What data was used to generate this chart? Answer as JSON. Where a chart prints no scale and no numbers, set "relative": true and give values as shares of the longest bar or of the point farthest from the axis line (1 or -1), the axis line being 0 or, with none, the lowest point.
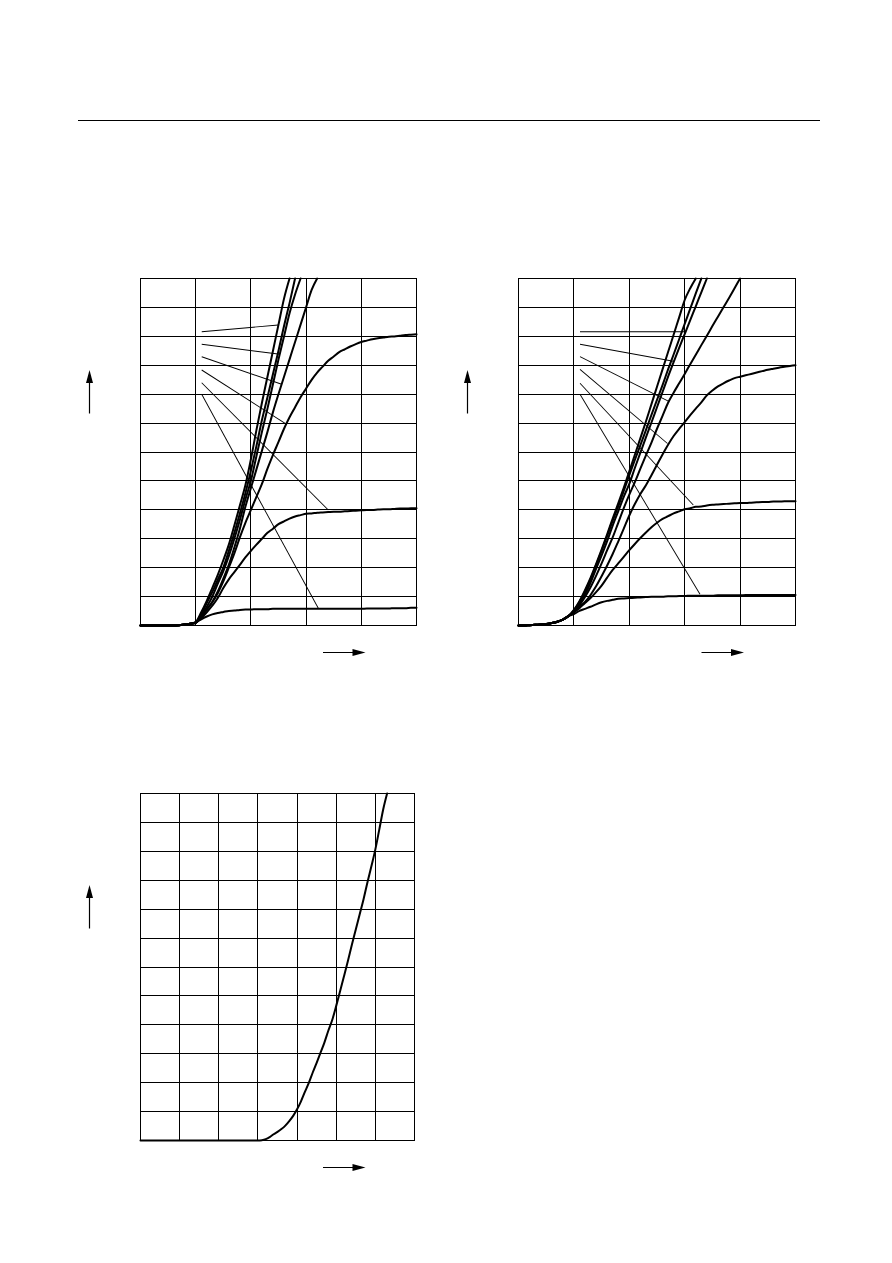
{
  "chart_data": [
    {
      "type": "line",
      "relative": true,
      "grid": true,
      "categories": [
        null,
        null,
        null,
        null,
        null,
        null,
        null,
        null,
        null,
        null,
        null,
        null,
        null,
        null,
        null,
        null,
        null,
        null,
        null,
        null,
        null,
        null,
        null,
        null,
        null,
        null,
        null,
        null,
        null,
        null,
        null,
        null,
        null,
        null,
        null,
        null,
        null,
        null,
        null,
        null,
        null,
        null,
        null,
        null,
        null,
        null,
        null,
        null,
        null,
        null,
        null
      ],
      "series": [
        {
          "color": "#000000",
          "values": [
            0,
            0,
            0,
            0,
            0,
            0,
            0,
            0.001,
            0.003,
            0.005,
            0.009,
            0.018,
            0.026,
            0.032,
            0.036,
            0.039,
            0.042,
            0.043,
            0.045,
            0.046,
            0.046,
            0.047,
            0.047,
            0.047,
            0.048,
            0.048,
            0.048,
            0.048,
            0.048,
            0.048,
            0.048,
            0.048,
            0.048,
            0.048,
            0.048,
            0.048,
            0.048,
            0.048,
            0.048,
            0.048,
            0.048,
            0.049,
            0.049,
            0.049,
            0.049,
            0.049,
            0.05,
            0.05,
            0.05,
            0.051,
            0.051
          ]
        },
        {
          "color": "#000000",
          "values": [
            0,
            0,
            0,
            0,
            0,
            0,
            0,
            0.001,
            0.003,
            0.005,
            0.008,
            0.021,
            0.038,
            0.057,
            0.079,
            0.108,
            0.133,
            0.154,
            0.175,
            0.196,
            0.215,
            0.233,
            0.25,
            0.267,
            0.279,
            0.292,
            0.3,
            0.308,
            0.314,
            0.318,
            0.322,
            0.323,
            0.325,
            0.326,
            0.327,
            0.328,
            0.328,
            0.329,
            0.33,
            0.331,
            0.332,
            0.333,
            0.333,
            0.334,
            0.335,
            0.335,
            0.336,
            0.337,
            0.337,
            0.338,
            0.338
          ]
        },
        {
          "color": "#000000",
          "values": [
            0,
            0,
            0,
            0,
            0,
            0,
            0,
            0.001,
            0.003,
            0.005,
            0.008,
            0.025,
            0.046,
            0.067,
            0.093,
            0.127,
            0.167,
            0.208,
            0.254,
            0.296,
            0.333,
            0.371,
            0.408,
            0.452,
            0.492,
            0.529,
            0.567,
            0.6,
            0.629,
            0.658,
            0.683,
            0.708,
            0.729,
            0.746,
            0.763,
            0.775,
            0.788,
            0.796,
            0.804,
            0.811,
            0.817,
            0.821,
            0.825,
            0.828,
            0.83,
            0.832,
            0.833,
            0.835,
            0.837,
            0.838,
            0.839
          ]
        },
        {
          "color": "#000000",
          "values": [
            0,
            0,
            0,
            0,
            0,
            0,
            0,
            0.001,
            0.003,
            0.005,
            0.01,
            0.038,
            0.071,
            0.108,
            0.146,
            0.188,
            0.233,
            0.288,
            0.346,
            0.404,
            0.479,
            0.563,
            0.642,
            0.717,
            0.792,
            0.867,
            0.942,
            1,
            null,
            null,
            null,
            null,
            null,
            null,
            null,
            null,
            null,
            null,
            null,
            null,
            null,
            null,
            null,
            null,
            null,
            null,
            null,
            null,
            null,
            null,
            null
          ]
        },
        {
          "color": "#000000",
          "values": [
            0,
            0,
            0,
            0,
            0,
            0,
            0,
            0.001,
            0.003,
            0.005,
            0.009,
            0.033,
            0.065,
            0.096,
            0.132,
            0.167,
            0.215,
            0.267,
            0.323,
            0.381,
            0.446,
            0.517,
            0.592,
            0.658,
            0.725,
            0.792,
            0.863,
            0.929,
            1,
            null,
            null,
            null,
            null,
            null,
            null,
            null,
            null,
            null,
            null,
            null,
            null,
            null,
            null,
            null,
            null,
            null,
            null,
            null,
            null,
            null,
            null
          ]
        },
        {
          "color": "#000000",
          "values": [
            0,
            0,
            0,
            0,
            0,
            0,
            0,
            0.001,
            0.003,
            0.005,
            0.008,
            0.029,
            0.054,
            0.083,
            0.121,
            0.157,
            0.2,
            0.25,
            0.304,
            0.363,
            0.417,
            0.488,
            0.558,
            0.625,
            0.696,
            0.767,
            0.833,
            0.9,
            0.954,
            1,
            null,
            null,
            null,
            null,
            null,
            null,
            null,
            null,
            null,
            null,
            null,
            null,
            null,
            null,
            null,
            null,
            null,
            null,
            null,
            null,
            null
          ]
        },
        {
          "color": "#000000",
          "values": [
            0,
            0,
            0,
            0,
            0,
            0,
            0,
            0.001,
            0.003,
            0.005,
            0.008,
            0.025,
            0.046,
            0.068,
            0.098,
            0.135,
            0.175,
            0.225,
            0.279,
            0.342,
            0.396,
            0.45,
            0.504,
            0.558,
            0.615,
            0.667,
            0.717,
            0.767,
            0.817,
            0.867,
            0.917,
            0.967,
            1,
            null,
            null,
            null,
            null,
            null,
            null,
            null,
            null,
            null,
            null,
            null,
            null,
            null,
            null,
            null,
            null,
            null,
            null
          ]
        }
      ]
    },
    {
      "type": "line",
      "relative": true,
      "grid": true,
      "categories": [
        null,
        null,
        null,
        null,
        null,
        null,
        null,
        null,
        null,
        null,
        null,
        null,
        null,
        null,
        null,
        null,
        null,
        null,
        null,
        null,
        null,
        null,
        null,
        null,
        null,
        null,
        null,
        null,
        null,
        null,
        null,
        null,
        null,
        null,
        null,
        null,
        null,
        null,
        null,
        null,
        null,
        null,
        null,
        null,
        null,
        null,
        null,
        null,
        null,
        null,
        null
      ],
      "series": [
        {
          "color": "#000000",
          "values": [
            0,
            0,
            0.001,
            0.002,
            0.003,
            0.004,
            0.007,
            0.011,
            0.017,
            0.027,
            0.033,
            0.042,
            0.048,
            0.054,
            0.061,
            0.067,
            0.071,
            0.074,
            0.077,
            0.078,
            0.079,
            0.08,
            0.081,
            0.082,
            0.083,
            0.083,
            0.083,
            0.084,
            0.084,
            0.085,
            0.085,
            0.086,
            0.086,
            0.086,
            0.086,
            0.086,
            0.087,
            0.087,
            0.087,
            0.087,
            0.087,
            0.088,
            0.088,
            0.088,
            0.088,
            0.088,
            0.088,
            0.088,
            0.088,
            0.088,
            0.088
          ]
        },
        {
          "color": "#000000",
          "values": [
            0,
            0,
            0.001,
            0.002,
            0.003,
            0.004,
            0.007,
            0.011,
            0.017,
            0.027,
            0.038,
            0.05,
            0.065,
            0.079,
            0.096,
            0.115,
            0.138,
            0.16,
            0.179,
            0.198,
            0.217,
            0.235,
            0.252,
            0.268,
            0.283,
            0.296,
            0.307,
            0.315,
            0.323,
            0.329,
            0.335,
            0.338,
            0.342,
            0.343,
            0.346,
            0.348,
            0.349,
            0.35,
            0.351,
            0.352,
            0.353,
            0.353,
            0.354,
            0.355,
            0.356,
            0.356,
            0.357,
            0.357,
            0.358,
            0.358,
            0.358
          ]
        },
        {
          "color": "#000000",
          "values": [
            0,
            0,
            0.001,
            0.002,
            0.003,
            0.004,
            0.007,
            0.011,
            0.017,
            0.027,
            0.038,
            0.054,
            0.068,
            0.088,
            0.113,
            0.142,
            0.173,
            0.206,
            0.242,
            0.279,
            0.317,
            0.35,
            0.379,
            0.404,
            0.433,
            0.463,
            0.493,
            0.521,
            0.546,
            0.567,
            0.586,
            0.606,
            0.625,
            0.643,
            0.663,
            0.677,
            0.689,
            0.698,
            0.706,
            0.713,
            0.717,
            0.721,
            0.725,
            0.729,
            0.733,
            0.737,
            0.74,
            0.743,
            0.746,
            0.748,
            0.75
          ]
        },
        {
          "color": "#000000",
          "values": [
            0,
            0,
            0.001,
            0.002,
            0.003,
            0.004,
            0.007,
            0.011,
            0.017,
            0.027,
            0.045,
            0.07,
            0.102,
            0.137,
            0.177,
            0.219,
            0.263,
            0.308,
            0.352,
            0.397,
            0.444,
            0.492,
            0.54,
            0.588,
            0.638,
            0.688,
            0.738,
            0.788,
            0.838,
            0.888,
            0.938,
            0.972,
            1,
            null,
            null,
            null,
            null,
            null,
            null,
            null,
            null,
            null,
            null,
            null,
            null,
            null,
            null,
            null,
            null,
            null,
            null
          ]
        },
        {
          "color": "#000000",
          "values": [
            0,
            0,
            0.001,
            0.002,
            0.003,
            0.004,
            0.007,
            0.011,
            0.017,
            0.027,
            0.043,
            0.068,
            0.098,
            0.133,
            0.173,
            0.215,
            0.258,
            0.302,
            0.343,
            0.388,
            0.433,
            0.477,
            0.52,
            0.563,
            0.607,
            0.65,
            0.693,
            0.738,
            0.781,
            0.825,
            0.869,
            0.913,
            0.957,
            1,
            null,
            null,
            null,
            null,
            null,
            null,
            null,
            null,
            null,
            null,
            null,
            null,
            null,
            null,
            null,
            null,
            null
          ]
        },
        {
          "color": "#000000",
          "values": [
            0,
            0,
            0.001,
            0.002,
            0.003,
            0.004,
            0.007,
            0.011,
            0.017,
            0.027,
            0.042,
            0.063,
            0.09,
            0.123,
            0.163,
            0.202,
            0.243,
            0.288,
            0.329,
            0.371,
            0.408,
            0.454,
            0.498,
            0.542,
            0.585,
            0.629,
            0.673,
            0.717,
            0.759,
            0.8,
            0.84,
            0.88,
            0.92,
            0.96,
            1,
            null,
            null,
            null,
            null,
            null,
            null,
            null,
            null,
            null,
            null,
            null,
            null,
            null,
            null,
            null,
            null
          ]
        },
        {
          "color": "#000000",
          "values": [
            0,
            0,
            0.001,
            0.002,
            0.003,
            0.004,
            0.007,
            0.011,
            0.017,
            0.027,
            0.04,
            0.058,
            0.082,
            0.11,
            0.143,
            0.179,
            0.217,
            0.254,
            0.296,
            0.338,
            0.377,
            0.413,
            0.452,
            0.49,
            0.527,
            0.567,
            0.604,
            0.642,
            0.671,
            0.698,
            0.725,
            0.753,
            0.78,
            0.808,
            0.835,
            0.863,
            0.89,
            0.917,
            0.944,
            0.972,
            1,
            null,
            null,
            null,
            null,
            null,
            null,
            null,
            null,
            null,
            null
          ]
        }
      ]
    },
    {
      "type": "line",
      "relative": true,
      "grid": true,
      "categories": [
        null,
        null,
        null,
        null,
        null,
        null,
        null,
        null,
        null,
        null,
        null,
        null,
        null,
        null,
        null,
        null,
        null,
        null,
        null,
        null,
        null,
        null,
        null,
        null,
        null,
        null,
        null,
        null,
        null,
        null,
        null,
        null,
        null,
        null,
        null,
        null,
        null,
        null,
        null,
        null,
        null,
        null,
        null,
        null,
        null,
        null,
        null,
        null,
        null,
        null,
        null,
        null,
        null,
        null,
        null,
        null,
        null,
        null,
        null,
        null,
        null,
        null,
        null,
        null,
        null,
        null,
        null,
        null,
        null,
        null,
        null
      ],
      "series": [
        {
          "color": "#000000",
          "values": [
            0,
            0,
            0,
            0,
            0,
            0,
            0,
            0,
            0,
            0,
            0,
            0,
            0,
            0,
            0,
            0,
            0,
            0,
            0,
            0,
            0,
            0,
            0,
            0,
            0,
            0,
            0,
            0,
            0,
            0,
            0,
            0.001,
            0.004,
            0.01,
            0.018,
            0.025,
            0.033,
            0.043,
            0.056,
            0.071,
            0.09,
            0.113,
            0.14,
            0.166,
            0.196,
            0.224,
            0.253,
            0.283,
            0.317,
            0.348,
            0.388,
            0.431,
            0.474,
            0.518,
            0.564,
            0.608,
            0.652,
            0.696,
            0.745,
            0.791,
            0.839,
            0.896,
            0.954,
            1,
            null,
            null,
            null,
            null,
            null,
            null,
            null
          ]
        }
      ]
    }
  ]
}
